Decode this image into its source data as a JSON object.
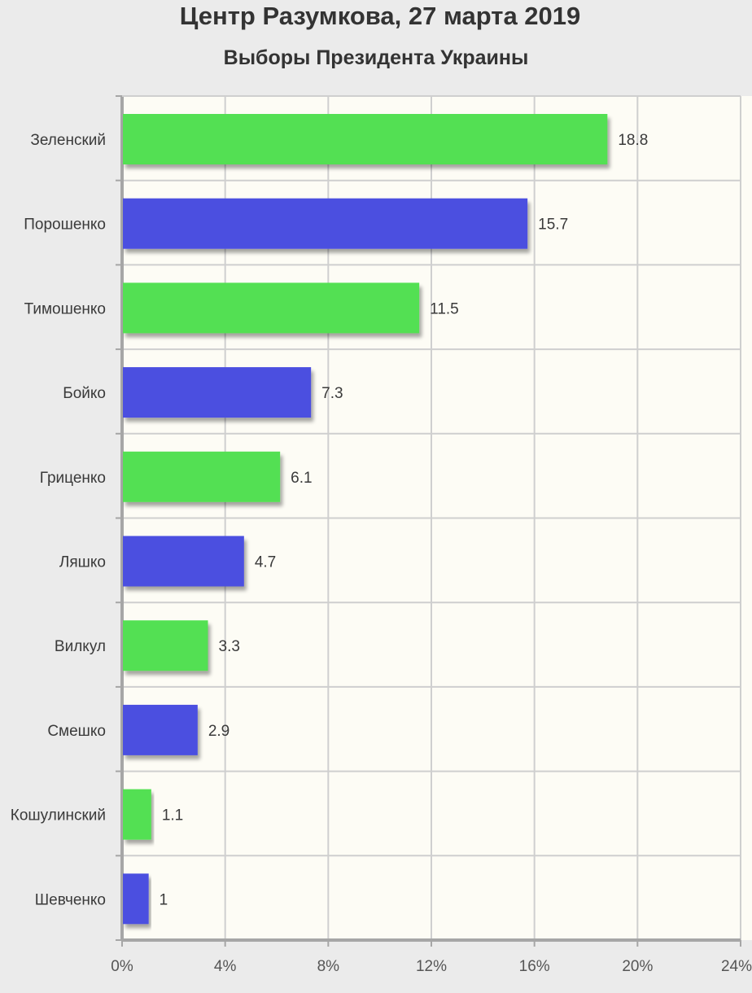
{
  "chart_data": {
    "type": "bar",
    "orientation": "horizontal",
    "title": "Центр Разумкова, 27 марта 2019",
    "subtitle": "Выборы Президента Украины",
    "categories": [
      "Зеленский",
      "Порошенко",
      "Тимошенко",
      "Бойко",
      "Гриценко",
      "Ляшко",
      "Вилкул",
      "Смешко",
      "Кошулинский",
      "Шевченко"
    ],
    "values": [
      18.8,
      15.7,
      11.5,
      7.3,
      6.1,
      4.7,
      3.3,
      2.9,
      1.1,
      1
    ],
    "value_labels": [
      "18.8",
      "15.7",
      "11.5",
      "7.3",
      "6.1",
      "4.7",
      "3.3",
      "2.9",
      "1.1",
      "1"
    ],
    "bar_colors": [
      "#52e052",
      "#4b4fe0",
      "#52e052",
      "#4b4fe0",
      "#52e052",
      "#4b4fe0",
      "#52e052",
      "#4b4fe0",
      "#52e052",
      "#4b4fe0"
    ],
    "xlim": [
      0,
      24
    ],
    "x_ticks": [
      0,
      4,
      8,
      12,
      16,
      20,
      24
    ],
    "x_tick_labels": [
      "0%",
      "4%",
      "8%",
      "12%",
      "16%",
      "20%",
      "24%"
    ],
    "xlabel": "",
    "ylabel": "",
    "grid": true,
    "legend": "none",
    "colors": {
      "page_background": "#ebebeb",
      "plot_background": "#fdfcf5",
      "grid": "#cfcfcf",
      "axis": "#a6a6a6"
    }
  }
}
